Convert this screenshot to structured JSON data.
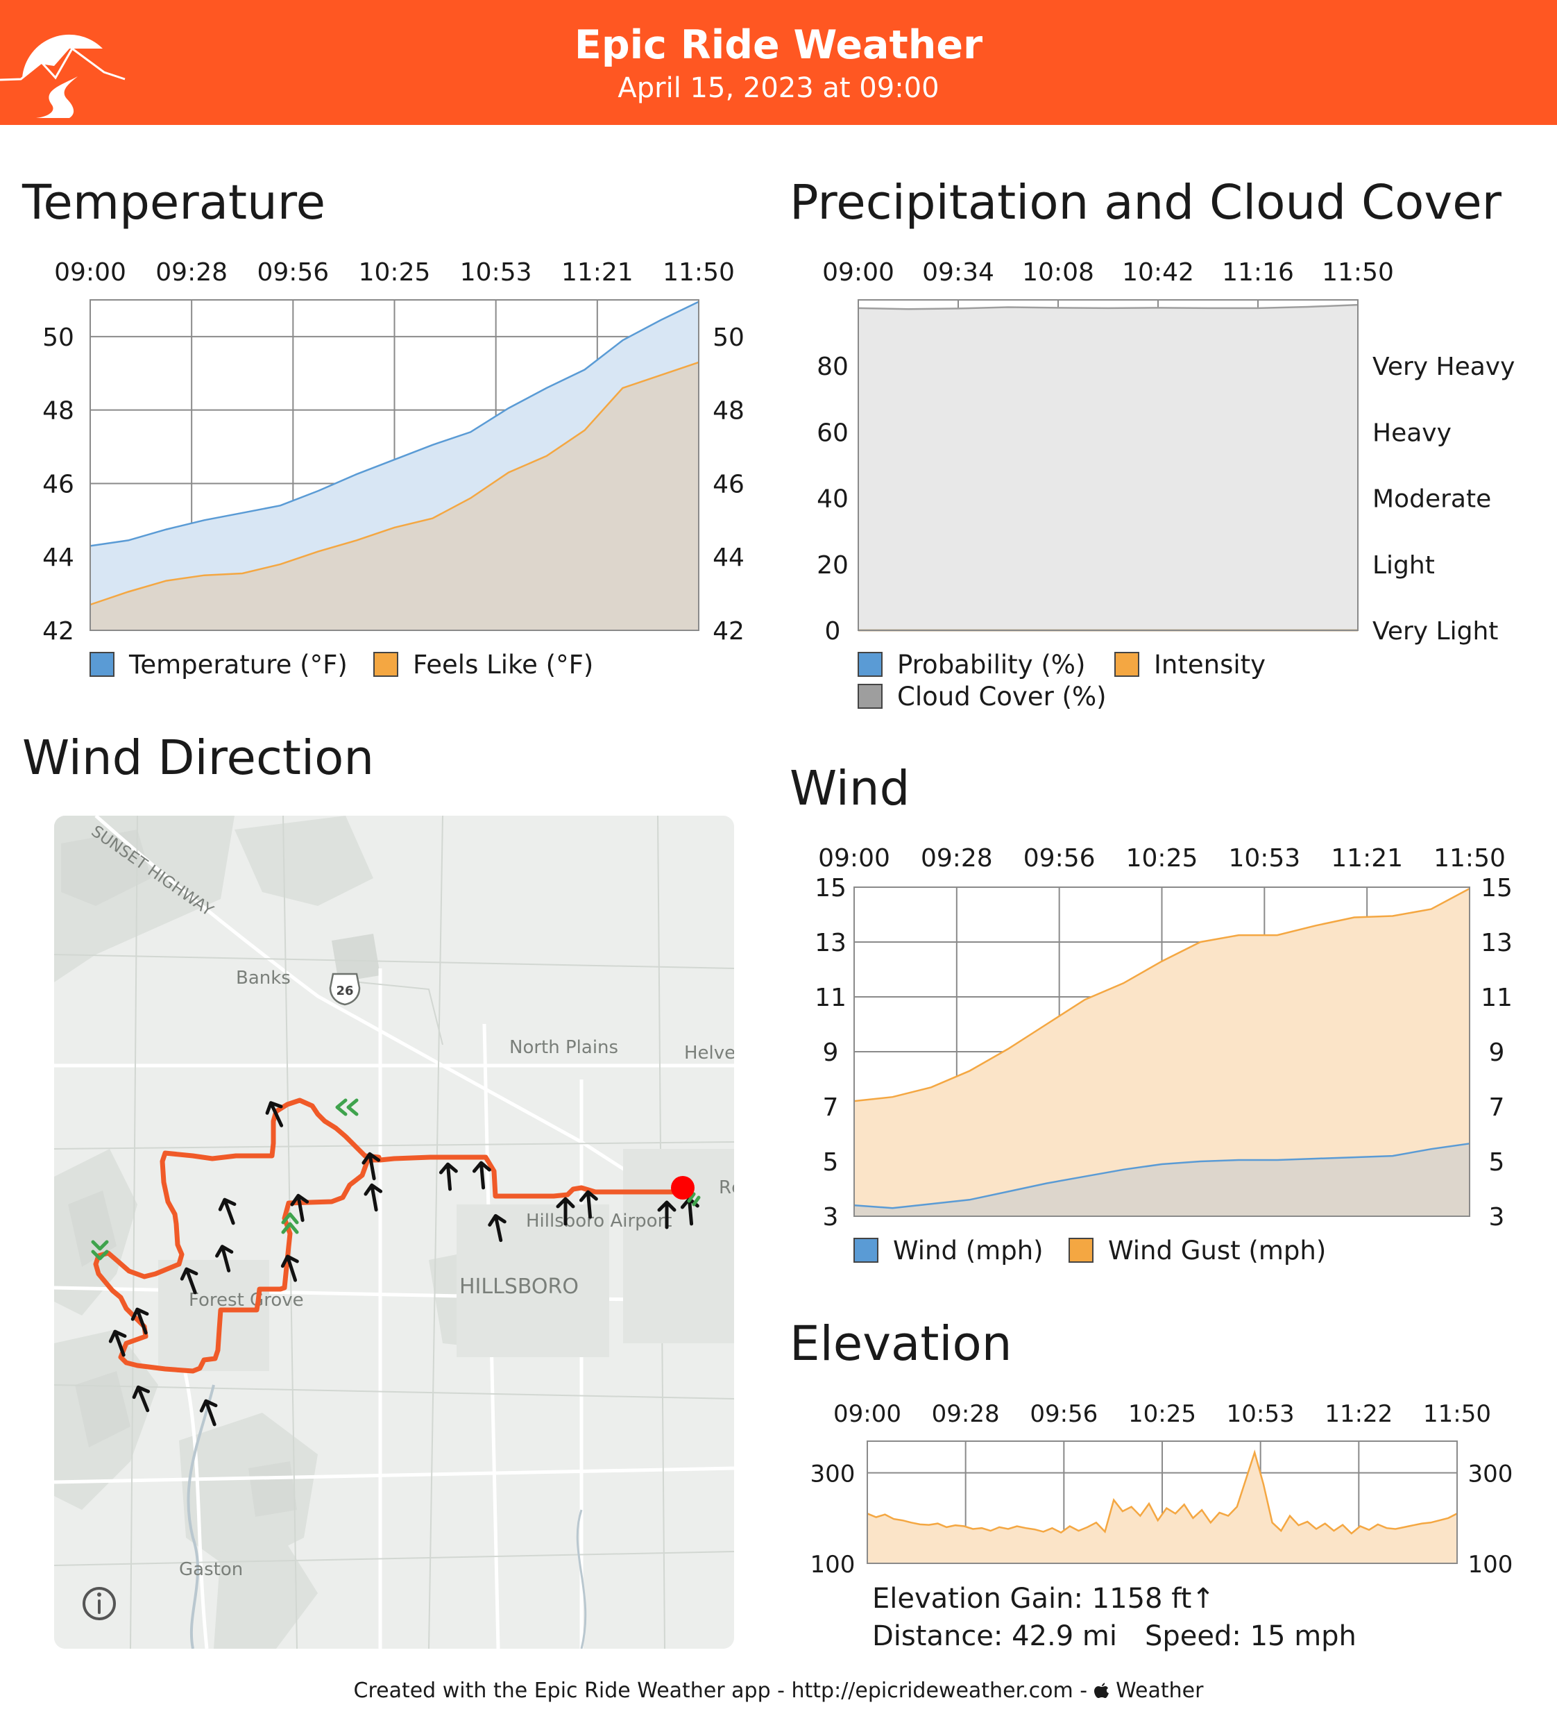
{
  "header": {
    "title": "Epic Ride Weather",
    "date": "April 15, 2023 at 09:00",
    "accent_color": "#ff5722",
    "logo_icon": "mountain-road-logo-icon"
  },
  "temperature": {
    "title": "Temperature",
    "chart_data": {
      "type": "area",
      "x_ticks": [
        "09:00",
        "09:28",
        "09:56",
        "10:25",
        "10:53",
        "11:21",
        "11:50"
      ],
      "y_ticks": [
        "42",
        "44",
        "46",
        "48",
        "50"
      ],
      "ylim": [
        42,
        51
      ],
      "grid": true,
      "legend_position": "bottom",
      "series": [
        {
          "name": "Temperature (°F)",
          "color": "#5a9bd5",
          "values": [
            44.3,
            44.45,
            44.75,
            45.0,
            45.2,
            45.4,
            45.8,
            46.25,
            46.65,
            47.05,
            47.4,
            48.05,
            48.6,
            49.1,
            49.9,
            50.45,
            50.95
          ]
        },
        {
          "name": "Feels Like (°F)",
          "color": "#f4a742",
          "values": [
            42.7,
            43.05,
            43.35,
            43.5,
            43.55,
            43.8,
            44.15,
            44.45,
            44.8,
            45.05,
            45.6,
            46.3,
            46.75,
            47.45,
            48.6,
            48.95,
            49.3
          ]
        }
      ]
    }
  },
  "precipitation": {
    "title": "Precipitation and Cloud Cover",
    "chart_data": {
      "type": "area",
      "x_ticks": [
        "09:00",
        "09:34",
        "10:08",
        "10:42",
        "11:16",
        "11:50"
      ],
      "y_ticks": [
        "0",
        "20",
        "40",
        "60",
        "80"
      ],
      "right_ticks": [
        "Very Light",
        "Light",
        "Moderate",
        "Heavy",
        "Very Heavy"
      ],
      "ylim": [
        0,
        100
      ],
      "grid": true,
      "legend_position": "bottom",
      "series": [
        {
          "name": "Probability (%)",
          "color": "#5a9bd5",
          "values": [
            0,
            0,
            0,
            0,
            0,
            0,
            0,
            0,
            0,
            0,
            0
          ]
        },
        {
          "name": "Intensity",
          "color": "#f4a742",
          "values": [
            0,
            0,
            0,
            0,
            0,
            0,
            0,
            0,
            0,
            0,
            0
          ]
        },
        {
          "name": "Cloud Cover (%)",
          "color": "#9e9e9e",
          "values": [
            97.5,
            97.2,
            97.4,
            97.8,
            97.6,
            97.5,
            97.6,
            97.5,
            97.5,
            97.9,
            98.5
          ]
        }
      ]
    }
  },
  "wind_direction": {
    "title": "Wind Direction",
    "map": {
      "labels": [
        "SUNSET HIGHWAY",
        "Banks",
        "26",
        "North Plains",
        "Helvet",
        "Hillsboro Airport",
        "HILLSBORO",
        "Forest Grove",
        "Gaston",
        "Rc"
      ],
      "route_color": "#f05a28",
      "start_marker_color": "#ff0000",
      "wind_arrow_icon": "wind-arrow-icon",
      "tailwind_icon": "double-chevron-icon",
      "info_icon": "info-icon"
    }
  },
  "wind": {
    "title": "Wind",
    "chart_data": {
      "type": "area",
      "x_ticks": [
        "09:00",
        "09:28",
        "09:56",
        "10:25",
        "10:53",
        "11:21",
        "11:50"
      ],
      "y_ticks": [
        "3",
        "5",
        "7",
        "9",
        "11",
        "13",
        "15"
      ],
      "ylim": [
        3,
        15
      ],
      "grid": true,
      "legend_position": "bottom",
      "series": [
        {
          "name": "Wind (mph)",
          "color": "#5a9bd5",
          "values": [
            3.4,
            3.3,
            3.45,
            3.6,
            3.9,
            4.2,
            4.45,
            4.7,
            4.9,
            5.0,
            5.05,
            5.05,
            5.1,
            5.15,
            5.2,
            5.45,
            5.65
          ]
        },
        {
          "name": "Wind Gust (mph)",
          "color": "#f4a742",
          "values": [
            7.2,
            7.35,
            7.7,
            8.3,
            9.1,
            10.0,
            10.9,
            11.5,
            12.3,
            13.0,
            13.25,
            13.25,
            13.6,
            13.9,
            13.95,
            14.2,
            14.95
          ]
        }
      ]
    }
  },
  "elevation": {
    "title": "Elevation",
    "chart_data": {
      "type": "area",
      "x_ticks": [
        "09:00",
        "09:28",
        "09:56",
        "10:25",
        "10:53",
        "11:22",
        "11:50"
      ],
      "y_ticks": [
        "100",
        "300"
      ],
      "ylim": [
        100,
        370
      ],
      "grid": true,
      "series": [
        {
          "name": "",
          "color": "#f4a742",
          "values": [
            210,
            202,
            208,
            198,
            195,
            190,
            186,
            185,
            188,
            180,
            184,
            182,
            176,
            178,
            172,
            180,
            176,
            182,
            178,
            175,
            170,
            178,
            168,
            182,
            172,
            180,
            190,
            170,
            240,
            215,
            225,
            205,
            232,
            195,
            222,
            210,
            230,
            200,
            218,
            190,
            212,
            205,
            225,
            285,
            345,
            275,
            190,
            172,
            205,
            184,
            192,
            176,
            188,
            172,
            185,
            166,
            182,
            174,
            186,
            178,
            176,
            180,
            184,
            188,
            190,
            195,
            200,
            210
          ]
        }
      ]
    },
    "stats": {
      "gain": "Elevation Gain: 1158 ft↑",
      "distance": "Distance: 42.9 mi",
      "speed": "Speed: 15 mph"
    }
  },
  "footer": {
    "text": "Created with the Epic Ride Weather app - http://epicrideweather.com - ",
    "weather_label": "Weather",
    "apple_icon": "apple-logo-icon"
  }
}
